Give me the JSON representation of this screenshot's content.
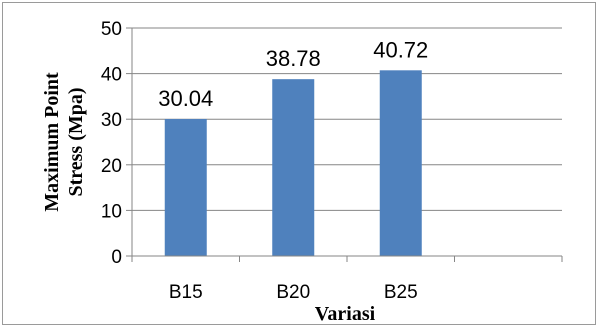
{
  "chart_data": {
    "type": "bar",
    "categories": [
      "B15",
      "B20",
      "B25",
      ""
    ],
    "values": [
      30.04,
      38.78,
      40.72,
      null
    ],
    "data_labels": [
      "30.04",
      "38.78",
      "40.72",
      ""
    ],
    "xlabel": "Variasi",
    "ylabel_lines": [
      "Maximum Point",
      "Stress (Mpa)"
    ],
    "ylim": [
      0,
      50
    ],
    "yticks": [
      "0",
      "10",
      "20",
      "30",
      "40",
      "50"
    ],
    "grid": true,
    "bar_color": "#4f81bd",
    "grid_color": "#868686",
    "axis_color": "#868686"
  }
}
